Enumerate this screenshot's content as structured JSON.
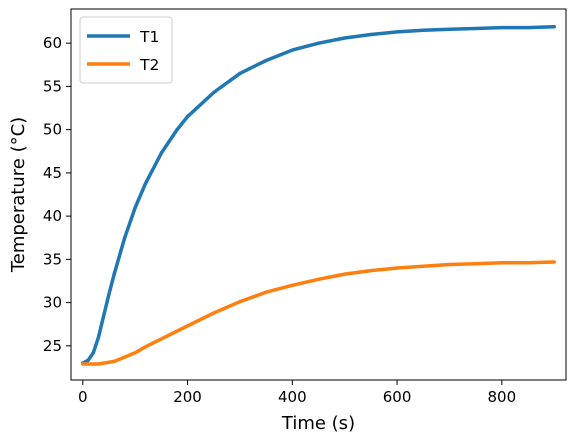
{
  "chart_data": {
    "type": "line",
    "title": "",
    "xlabel": "Time (s)",
    "ylabel": "Temperature (°C)",
    "xlim": [
      -22.5,
      922.5
    ],
    "ylim": [
      21.05,
      63.95
    ],
    "xticks": [
      0,
      200,
      400,
      600,
      800
    ],
    "yticks": [
      25,
      30,
      35,
      40,
      45,
      50,
      55,
      60
    ],
    "grid": false,
    "legend_position": "upper-left",
    "series": [
      {
        "name": "T1",
        "color": "#1f77b4",
        "x": [
          0,
          10,
          20,
          30,
          40,
          50,
          60,
          80,
          100,
          120,
          150,
          180,
          200,
          250,
          300,
          350,
          400,
          450,
          500,
          550,
          600,
          650,
          700,
          750,
          800,
          850,
          900
        ],
        "y": [
          23.0,
          23.3,
          24.2,
          26.0,
          28.5,
          31.0,
          33.3,
          37.5,
          41.0,
          43.8,
          47.3,
          50.0,
          51.5,
          54.3,
          56.5,
          58.0,
          59.2,
          60.0,
          60.6,
          61.0,
          61.3,
          61.5,
          61.6,
          61.7,
          61.8,
          61.8,
          61.9
        ]
      },
      {
        "name": "T2",
        "color": "#ff7f0e",
        "x": [
          0,
          30,
          60,
          80,
          100,
          120,
          150,
          180,
          200,
          250,
          300,
          350,
          400,
          450,
          500,
          550,
          600,
          650,
          700,
          750,
          800,
          850,
          900
        ],
        "y": [
          22.9,
          22.9,
          23.2,
          23.7,
          24.2,
          24.9,
          25.8,
          26.7,
          27.3,
          28.8,
          30.1,
          31.2,
          32.0,
          32.7,
          33.3,
          33.7,
          34.0,
          34.2,
          34.4,
          34.5,
          34.6,
          34.6,
          34.7
        ]
      }
    ]
  }
}
